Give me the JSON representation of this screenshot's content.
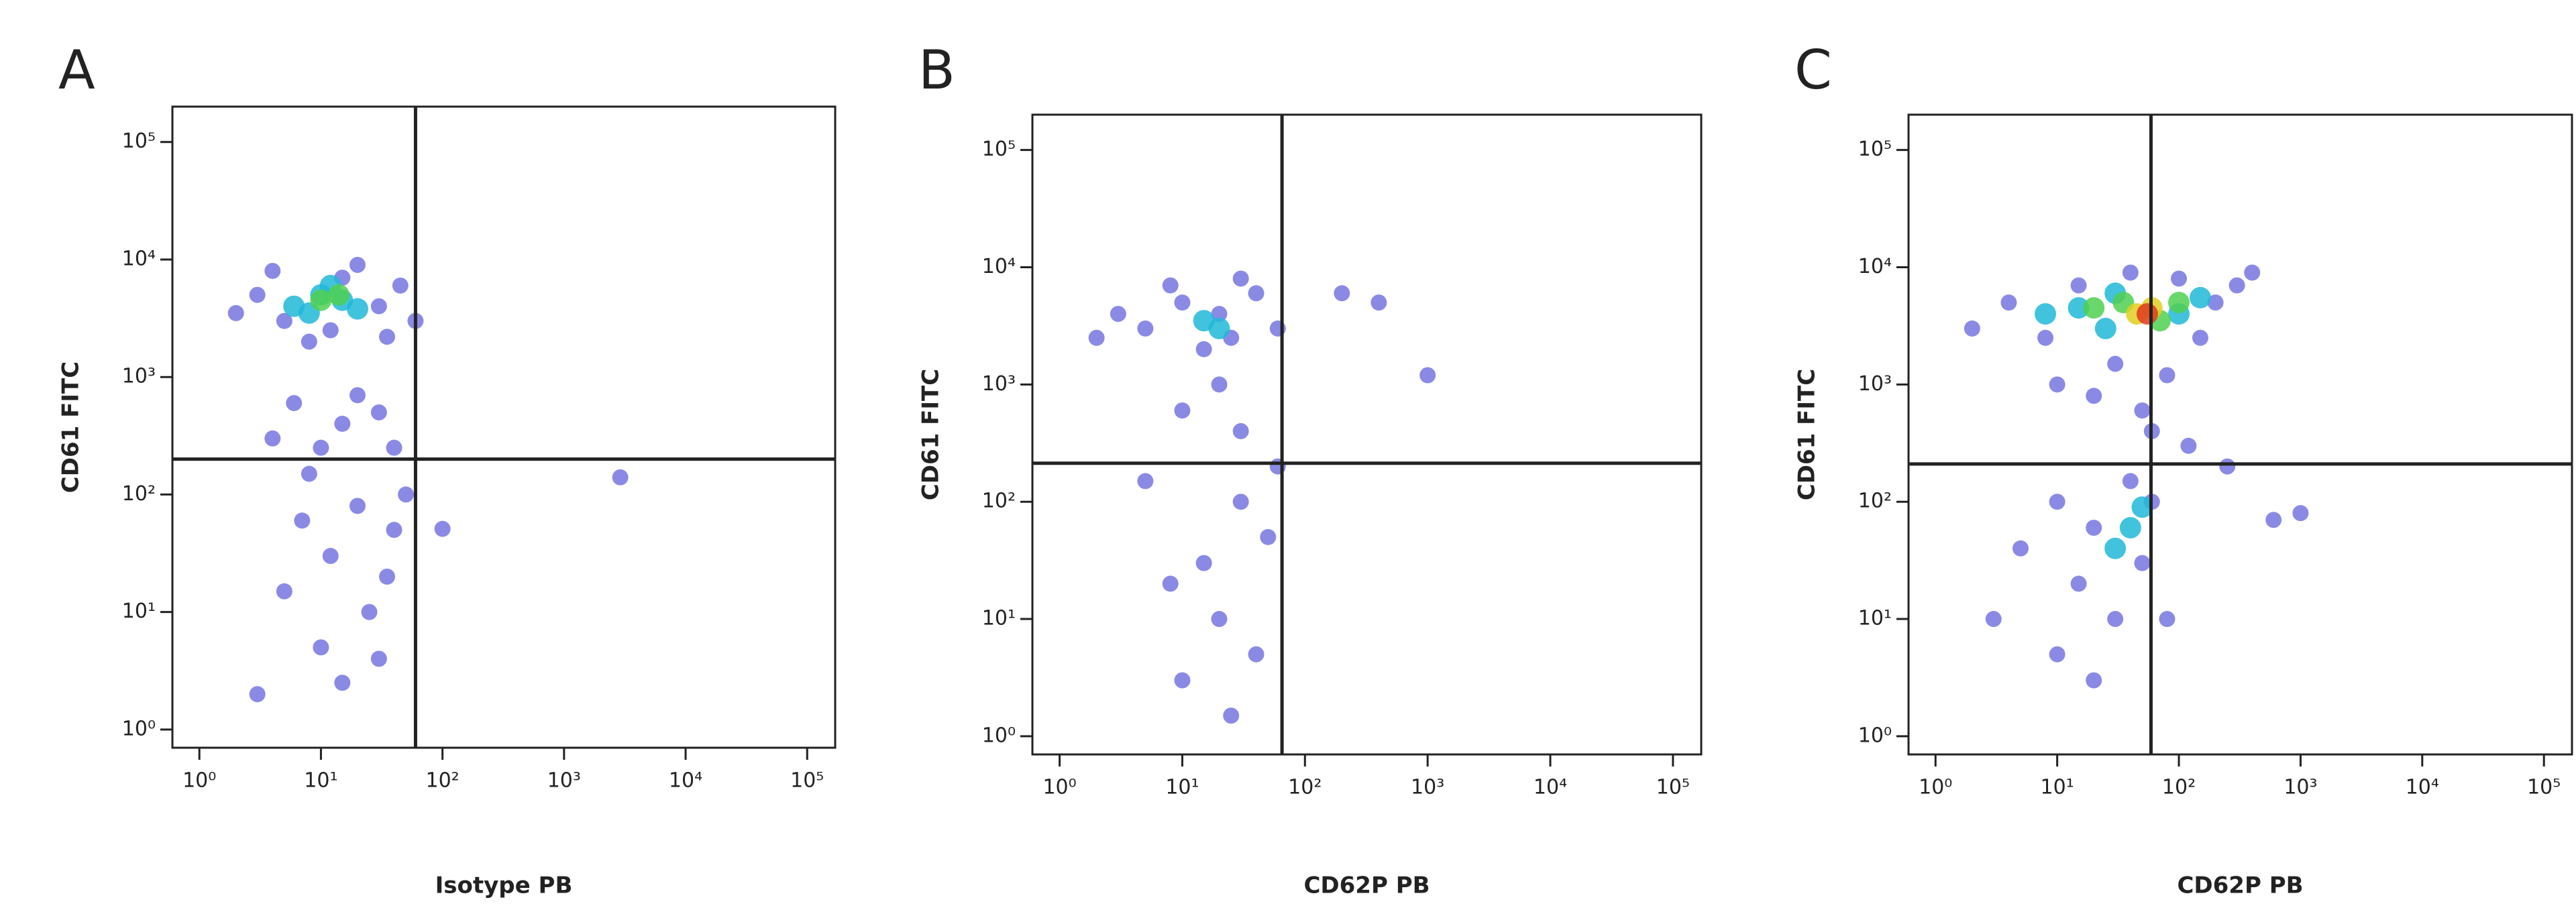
{
  "chart_data": [
    {
      "type": "scatter",
      "label": "A",
      "xlabel": "Isotype PB",
      "ylabel": "CD61 FITC",
      "log_x": true,
      "log_y": true,
      "xlim": [
        0.6,
        170000
      ],
      "ylim": [
        0.7,
        200000
      ],
      "xticks": [
        {
          "value": 1,
          "label": "10⁰"
        },
        {
          "value": 10,
          "label": "10¹"
        },
        {
          "value": 100,
          "label": "10²"
        },
        {
          "value": 1000,
          "label": "10³"
        },
        {
          "value": 10000,
          "label": "10⁴"
        },
        {
          "value": 100000,
          "label": "10⁵"
        }
      ],
      "yticks": [
        {
          "value": 1,
          "label": "10⁰"
        },
        {
          "value": 10,
          "label": "10¹"
        },
        {
          "value": 100,
          "label": "10²"
        },
        {
          "value": 1000,
          "label": "10³"
        },
        {
          "value": 10000,
          "label": "10⁴"
        },
        {
          "value": 100000,
          "label": "10⁵"
        }
      ],
      "quadrant": {
        "x": 60,
        "y": 200
      },
      "series": [
        {
          "color": "#2a2ad0",
          "x": [
            3,
            5,
            12,
            30,
            45,
            4,
            20,
            2,
            60,
            8,
            15,
            35,
            6,
            15,
            30,
            4,
            40,
            10,
            20,
            8,
            20,
            40,
            12,
            5,
            25,
            10,
            30,
            15,
            50,
            7,
            3,
            35,
            2900,
            100
          ],
          "y": [
            5000,
            3000,
            2500,
            4000,
            6000,
            8000,
            9000,
            3500,
            3000,
            2000,
            7000,
            2200,
            600,
            400,
            500,
            300,
            250,
            250,
            700,
            150,
            80,
            50,
            30,
            15,
            10,
            5,
            4,
            2.5,
            100,
            60,
            2,
            20,
            140,
            51
          ]
        },
        {
          "color": "#20b8d8",
          "x": [
            6,
            10,
            15,
            8,
            20,
            12
          ],
          "y": [
            4000,
            5000,
            4500,
            3500,
            3800,
            6000
          ]
        },
        {
          "color": "#50d050",
          "x": [
            10,
            14
          ],
          "y": [
            4500,
            5000
          ]
        }
      ]
    },
    {
      "type": "scatter",
      "label": "B",
      "xlabel": "CD62P PB",
      "ylabel": "CD61 FITC",
      "log_x": true,
      "log_y": true,
      "xlim": [
        0.6,
        170000
      ],
      "ylim": [
        0.7,
        200000
      ],
      "xticks": [
        {
          "value": 1,
          "label": "10⁰"
        },
        {
          "value": 10,
          "label": "10¹"
        },
        {
          "value": 100,
          "label": "10²"
        },
        {
          "value": 1000,
          "label": "10³"
        },
        {
          "value": 10000,
          "label": "10⁴"
        },
        {
          "value": 100000,
          "label": "10⁵"
        }
      ],
      "yticks": [
        {
          "value": 1,
          "label": "10⁰"
        },
        {
          "value": 10,
          "label": "10¹"
        },
        {
          "value": 100,
          "label": "10²"
        },
        {
          "value": 1000,
          "label": "10³"
        },
        {
          "value": 10000,
          "label": "10⁴"
        },
        {
          "value": 100000,
          "label": "10⁵"
        }
      ],
      "quadrant": {
        "x": 65,
        "y": 213
      },
      "series": [
        {
          "color": "#2a2ad0",
          "x": [
            5,
            10,
            20,
            40,
            60,
            3,
            15,
            30,
            8,
            25,
            2,
            200,
            400,
            1000,
            10,
            30,
            20,
            5,
            30,
            50,
            15,
            20,
            40,
            10,
            25,
            60,
            8
          ],
          "y": [
            3000,
            5000,
            4000,
            6000,
            3000,
            4000,
            2000,
            8000,
            7000,
            2500,
            2500,
            6000,
            5000,
            1200,
            600,
            400,
            1000,
            150,
            100,
            50,
            30,
            10,
            5,
            3,
            1.5,
            200,
            20
          ]
        },
        {
          "color": "#20b8d8",
          "x": [
            15,
            20
          ],
          "y": [
            3500,
            3000
          ]
        }
      ]
    },
    {
      "type": "scatter",
      "label": "C",
      "xlabel": "CD62P PB",
      "ylabel": "CD61 FITC",
      "log_x": true,
      "log_y": true,
      "xlim": [
        0.6,
        170000
      ],
      "ylim": [
        0.7,
        200000
      ],
      "xticks": [
        {
          "value": 1,
          "label": "10⁰"
        },
        {
          "value": 10,
          "label": "10¹"
        },
        {
          "value": 100,
          "label": "10²"
        },
        {
          "value": 1000,
          "label": "10³"
        },
        {
          "value": 10000,
          "label": "10⁴"
        },
        {
          "value": 100000,
          "label": "10⁵"
        }
      ],
      "yticks": [
        {
          "value": 1,
          "label": "10⁰"
        },
        {
          "value": 10,
          "label": "10¹"
        },
        {
          "value": 100,
          "label": "10²"
        },
        {
          "value": 1000,
          "label": "10³"
        },
        {
          "value": 10000,
          "label": "10⁴"
        },
        {
          "value": 100000,
          "label": "10⁵"
        }
      ],
      "quadrant": {
        "x": 59,
        "y": 210
      },
      "series": [
        {
          "color": "#2a2ad0",
          "x": [
            2,
            4,
            8,
            15,
            40,
            100,
            200,
            300,
            400,
            150,
            30,
            10,
            50,
            20,
            80,
            60,
            120,
            10,
            20,
            40,
            60,
            5,
            15,
            30,
            10,
            20,
            50,
            3,
            250,
            1000,
            600,
            80
          ],
          "y": [
            3000,
            5000,
            2500,
            7000,
            9000,
            8000,
            5000,
            7000,
            9000,
            2500,
            1500,
            1000,
            600,
            800,
            1200,
            400,
            300,
            100,
            60,
            150,
            100,
            40,
            20,
            10,
            5,
            3,
            30,
            10,
            200,
            80,
            70,
            10
          ]
        },
        {
          "color": "#20b8d8",
          "x": [
            8,
            15,
            25,
            100,
            150,
            30,
            40,
            50,
            30
          ],
          "y": [
            4000,
            4500,
            3000,
            4000,
            5500,
            6000,
            60,
            90,
            40
          ]
        },
        {
          "color": "#50d050",
          "x": [
            20,
            35,
            70,
            100
          ],
          "y": [
            4500,
            5000,
            3500,
            5000
          ]
        },
        {
          "color": "#e0d020",
          "x": [
            45,
            60
          ],
          "y": [
            4000,
            4500
          ]
        },
        {
          "color": "#e03a20",
          "x": [
            55
          ],
          "y": [
            4000
          ]
        }
      ]
    }
  ]
}
